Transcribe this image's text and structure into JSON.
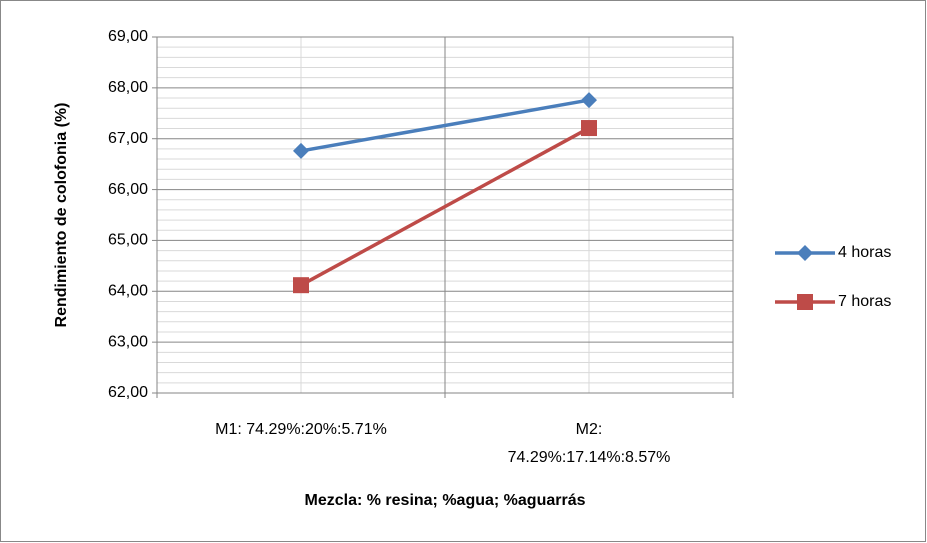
{
  "chart_data": {
    "type": "line",
    "x_label": "Mezcla: % resina; %agua; %aguarrás",
    "y_label": "Rendimiento de colofonia (%)",
    "categories": [
      "M1: 74.29%:20%:5.71%",
      "M2: 74.29%:17.14%:8.57%"
    ],
    "series": [
      {
        "name": "4 horas",
        "color": "#4a7ebb",
        "marker": "diamond",
        "values": [
          66.76,
          67.76
        ]
      },
      {
        "name": "7 horas",
        "color": "#be4b48",
        "marker": "square",
        "values": [
          64.12,
          67.21
        ]
      }
    ],
    "ylim": [
      62,
      69
    ],
    "yticks": [
      {
        "value": 62,
        "label": "62,00"
      },
      {
        "value": 63,
        "label": "63,00"
      },
      {
        "value": 64,
        "label": "64,00"
      },
      {
        "value": 65,
        "label": "65,00"
      },
      {
        "value": 66,
        "label": "66,00"
      },
      {
        "value": 67,
        "label": "67,00"
      },
      {
        "value": 68,
        "label": "68,00"
      },
      {
        "value": 69,
        "label": "69,00"
      }
    ],
    "grid": true,
    "legend": "right"
  }
}
